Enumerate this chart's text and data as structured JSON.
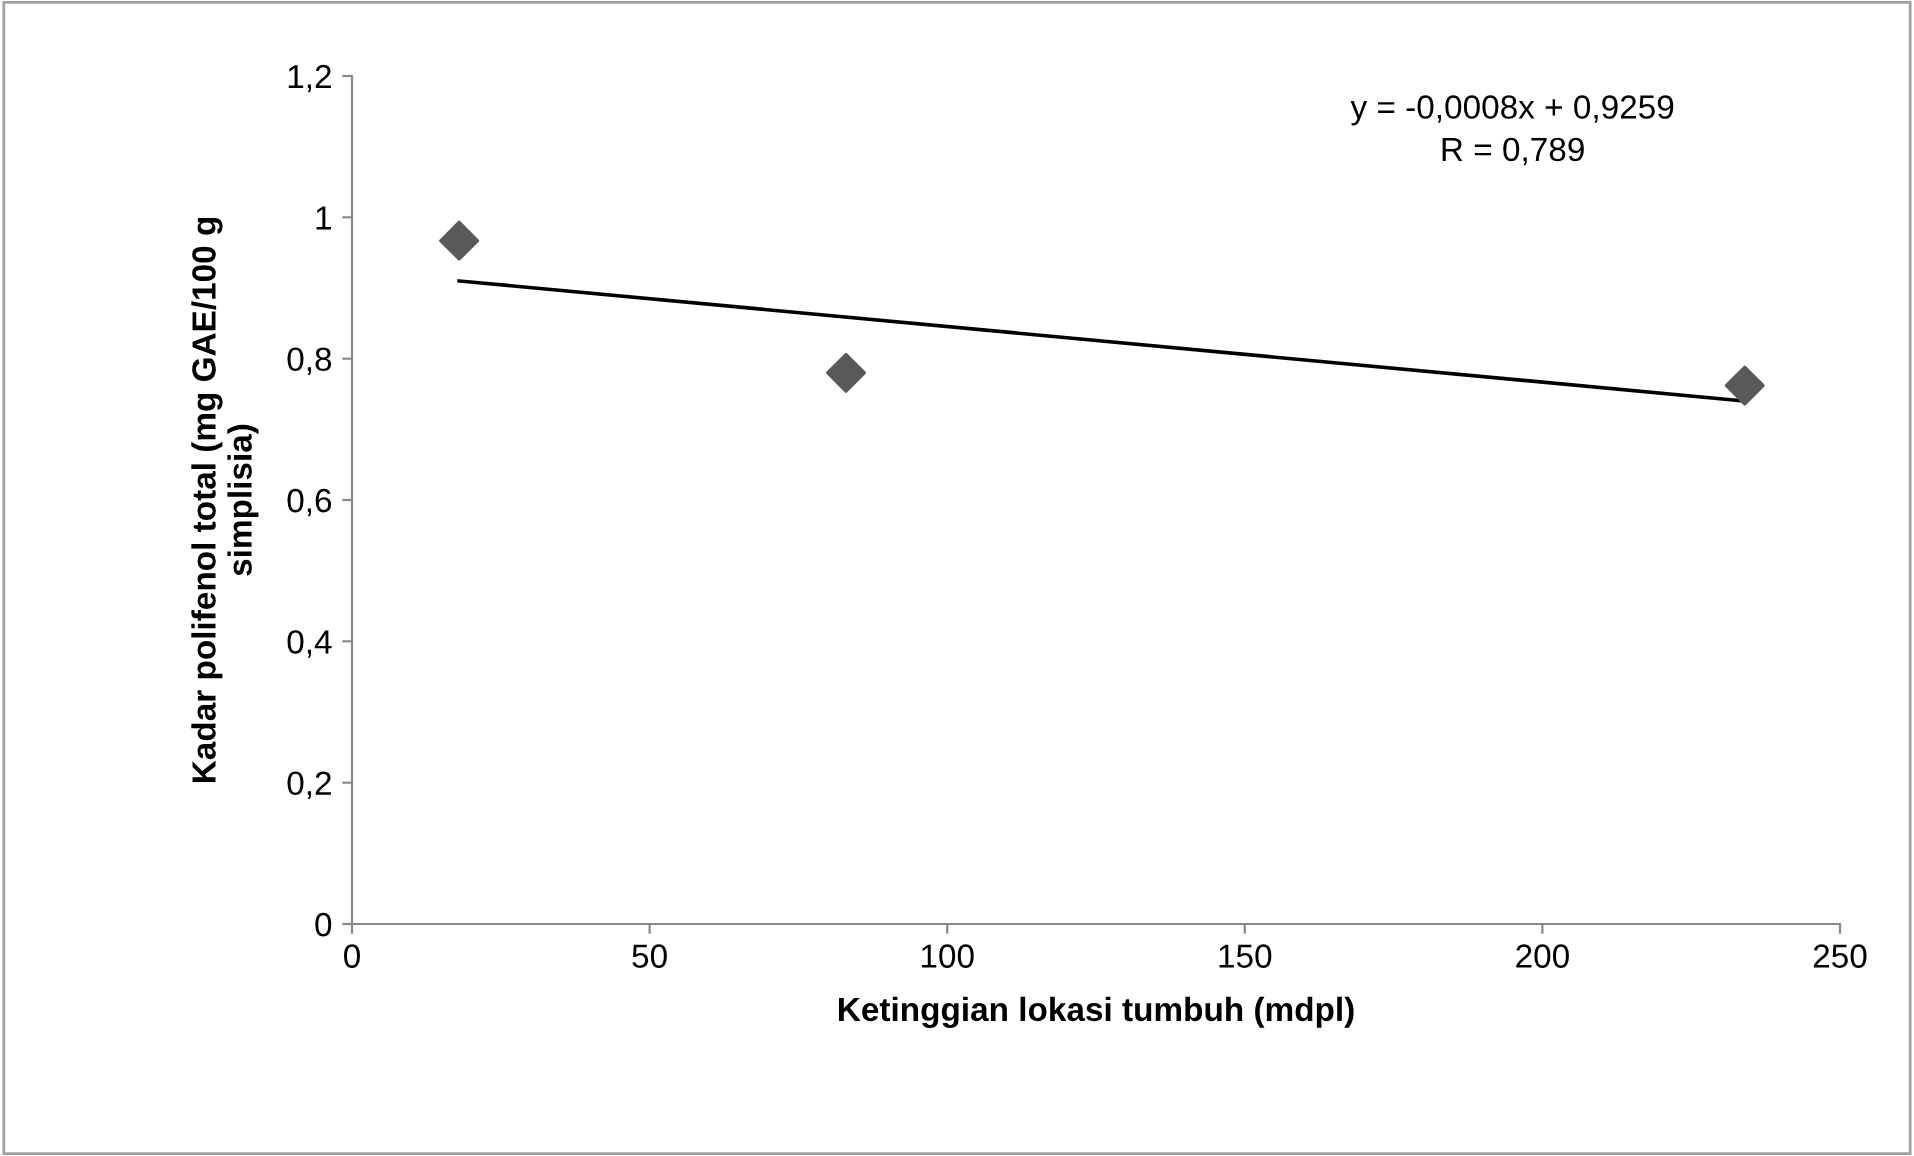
{
  "chart_data": {
    "type": "scatter",
    "xlabel": "Ketinggian lokasi tumbuh (mdpl)",
    "ylabel": "Kadar polifenol total (mg GAE/100 g simplisia)",
    "x": [
      18,
      83,
      234
    ],
    "series": [
      {
        "color": "#595959",
        "marker": "diamond",
        "values": [
          0.967,
          0.78,
          0.762
        ]
      },
      {
        "type": "line",
        "color": "#000000",
        "marker": "none",
        "line_style": "solid",
        "x": [
          18,
          234
        ],
        "values": [
          0.91,
          0.74
        ]
      }
    ],
    "xlim": [
      0,
      250
    ],
    "xticks": [
      0,
      50,
      100,
      150,
      200,
      250
    ],
    "ylim": [
      0,
      1.2
    ],
    "yticks": [
      0,
      {
        "value": 0.2,
        "label": "0,2"
      },
      {
        "value": 0.4,
        "label": "0,4"
      },
      {
        "value": 0.6,
        "label": "0,6"
      },
      {
        "value": 0.8,
        "label": "0,8"
      },
      1,
      {
        "value": 1.2,
        "label": "1,2"
      }
    ],
    "annotations": [
      "y = -0,0008x + 0,9259",
      "R = 0,789"
    ],
    "grid": false,
    "legend": false
  }
}
